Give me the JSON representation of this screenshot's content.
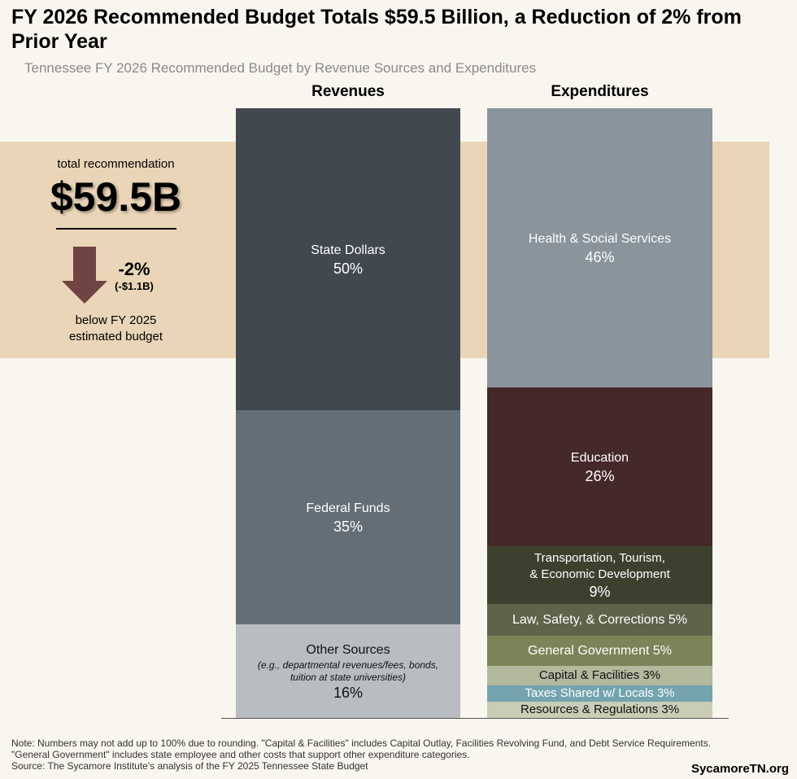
{
  "title": "FY 2026 Recommended Budget Totals $59.5 Billion, a Reduction of 2% from Prior Year",
  "subtitle": "Tennessee FY 2026 Recommended Budget by Revenue Sources and Expenditures",
  "summary": {
    "label": "total recommendation",
    "total": "$59.5B",
    "change_pct": "-2%",
    "change_amt": "(-$1.1B)",
    "caption_line1": "below FY 2025",
    "caption_line2": "estimated budget",
    "arrow_color": "#6f4442",
    "band_color": "#ead5b8"
  },
  "chart_data": {
    "type": "stacked-bar",
    "categories": [
      "Revenues",
      "Expenditures"
    ],
    "revenues": [
      {
        "name": "State Dollars",
        "value": 50,
        "label": "50%",
        "color": "#41484f"
      },
      {
        "name": "Federal Funds",
        "value": 35,
        "label": "35%",
        "color": "#646e77"
      },
      {
        "name": "Other Sources",
        "note": "(e.g., departmental revenues/fees, bonds, tuition at state universities)",
        "value": 16,
        "label": "16%",
        "color": "#b9bcc0"
      }
    ],
    "expenditures": [
      {
        "name": "Health & Social Services",
        "value": 46,
        "label": "46%",
        "color": "#89949c"
      },
      {
        "name": "Education",
        "value": 26,
        "label": "26%",
        "color": "#45282a"
      },
      {
        "name": "Transportation, Tourism, & Economic Development",
        "value": 9,
        "label": "9%",
        "color": "#3e402e"
      },
      {
        "name": "Law, Safety, & Corrections",
        "value": 5,
        "label": "5%",
        "color": "#5f6349"
      },
      {
        "name": "General Government",
        "value": 5,
        "label": "5%",
        "color": "#7c8358"
      },
      {
        "name": "Capital & Facilities",
        "value": 3,
        "label": "3%",
        "color": "#b2b99d"
      },
      {
        "name": "Taxes Shared w/ Locals",
        "value": 3,
        "label": "3%",
        "color": "#73a4ae"
      },
      {
        "name": "Resources & Regulations",
        "value": 3,
        "label": "3%",
        "color": "#c9cdb6"
      }
    ]
  },
  "notes": {
    "line1": "Note: Numbers may not add up to 100% due to rounding. \"Capital & Facilities\" includes Capital Outlay, Facilities Revolving Fund, and Debt Service Requirements.",
    "line2": "\"General Government\" includes state employee and other costs that support other expenditure categories.",
    "source": "Source: The Sycamore Institute's analysis of the FY 2025 Tennessee State Budget"
  },
  "brand": "SycamoreTN.org"
}
